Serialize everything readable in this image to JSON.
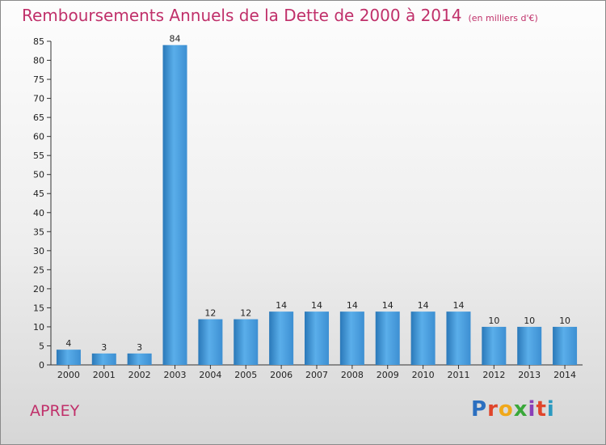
{
  "header": {
    "title": "Remboursements Annuels de la Dette de 2000 à 2014",
    "unit": "(en milliers d'€)"
  },
  "footer": {
    "commune": "APREY",
    "logo_text": "Proxiti"
  },
  "colors": {
    "title": "#c0306a",
    "bar_top": "#5fb0ec",
    "bar_bottom": "#2c7fc2"
  },
  "chart_data": {
    "type": "bar",
    "title": "Remboursements Annuels de la Dette de 2000 à 2014",
    "xlabel": "",
    "ylabel": "",
    "categories": [
      "2000",
      "2001",
      "2002",
      "2003",
      "2004",
      "2005",
      "2006",
      "2007",
      "2008",
      "2009",
      "2010",
      "2011",
      "2012",
      "2013",
      "2014"
    ],
    "values": [
      4,
      3,
      3,
      84,
      12,
      12,
      14,
      14,
      14,
      14,
      14,
      14,
      10,
      10,
      10
    ],
    "ylim": [
      0,
      85
    ],
    "yticks": [
      0,
      5,
      10,
      15,
      20,
      25,
      30,
      35,
      40,
      45,
      50,
      55,
      60,
      65,
      70,
      75,
      80,
      85
    ],
    "grid": false,
    "legend": "none"
  }
}
